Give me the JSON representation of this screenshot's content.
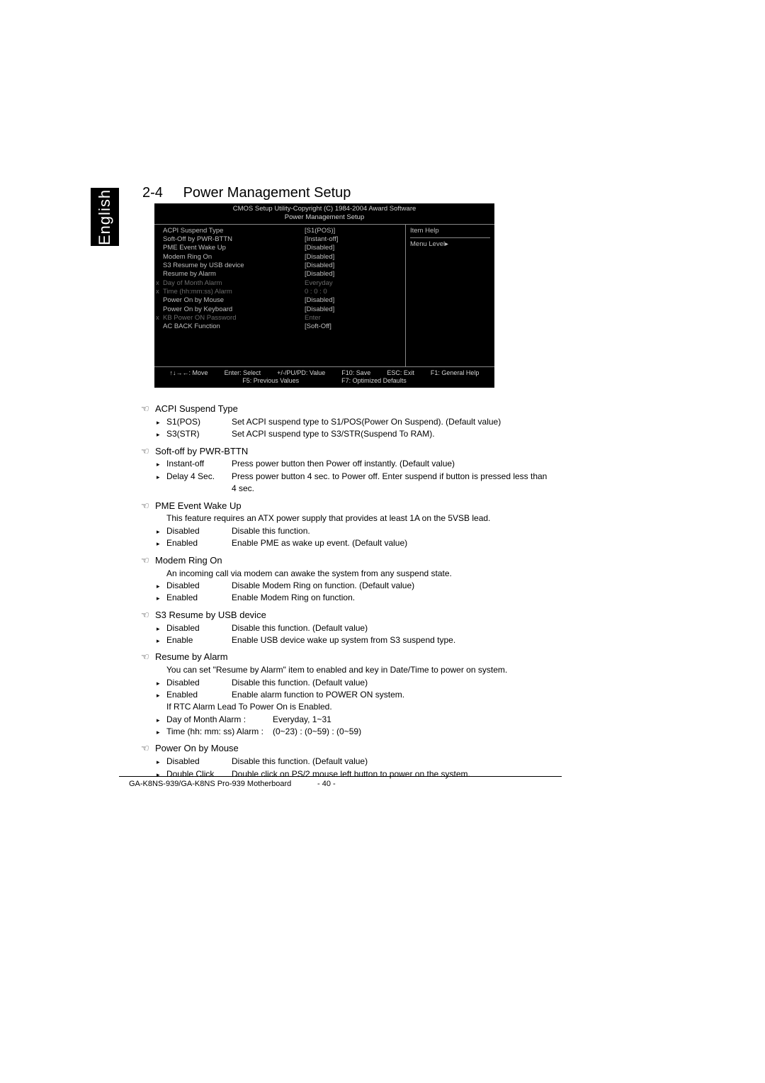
{
  "tab": {
    "label": "English"
  },
  "section": {
    "number": "2-4",
    "title": "Power Management Setup"
  },
  "bios": {
    "header1": "CMOS Setup Utility-Copyright (C) 1984-2004 Award Software",
    "header2": "Power Management Setup",
    "rows": [
      {
        "label": "ACPI Suspend Type",
        "value": "[S1(POS)]",
        "dim": false,
        "x": false
      },
      {
        "label": "Soft-Off by PWR-BTTN",
        "value": "[Instant-off]",
        "dim": false,
        "x": false
      },
      {
        "label": "PME Event Wake Up",
        "value": "[Disabled]",
        "dim": false,
        "x": false
      },
      {
        "label": "Modem Ring On",
        "value": "[Disabled]",
        "dim": false,
        "x": false
      },
      {
        "label": "S3 Resume by USB device",
        "value": "[Disabled]",
        "dim": false,
        "x": false
      },
      {
        "label": "Resume by Alarm",
        "value": "[Disabled]",
        "dim": false,
        "x": false
      },
      {
        "label": "Day of Month Alarm",
        "value": "Everyday",
        "dim": true,
        "x": true
      },
      {
        "label": "Time (hh:mm:ss) Alarm",
        "value": "0 : 0 : 0",
        "dim": true,
        "x": true
      },
      {
        "label": "Power On by Mouse",
        "value": "[Disabled]",
        "dim": false,
        "x": false
      },
      {
        "label": "Power On by Keyboard",
        "value": "[Disabled]",
        "dim": false,
        "x": false
      },
      {
        "label": "KB Power ON Password",
        "value": "Enter",
        "dim": true,
        "x": true
      },
      {
        "label": "AC BACK Function",
        "value": "[Soft-Off]",
        "dim": false,
        "x": false
      }
    ],
    "right": {
      "item_help": "Item Help",
      "menu_level": "Menu Level▸"
    },
    "footer": {
      "row1": [
        "↑↓→←: Move",
        "Enter: Select",
        "+/-/PU/PD: Value",
        "F10: Save",
        "ESC: Exit",
        "F1: General Help"
      ],
      "row2": [
        "F5: Previous Values",
        "F7: Optimized Defaults"
      ]
    }
  },
  "options": [
    {
      "title": "ACPI Suspend Type",
      "items": [
        {
          "key": "S1(POS)",
          "desc": "Set ACPI suspend type to S1/POS(Power On Suspend). (Default value)"
        },
        {
          "key": "S3(STR)",
          "desc": "Set ACPI suspend type to S3/STR(Suspend To RAM)."
        }
      ]
    },
    {
      "title": "Soft-off by PWR-BTTN",
      "items": [
        {
          "key": "Instant-off",
          "desc": "Press power button then Power off instantly. (Default value)"
        },
        {
          "key": "Delay 4 Sec.",
          "desc": "Press power button 4 sec. to Power off. Enter suspend if button is pressed less than 4 sec."
        }
      ]
    },
    {
      "title": "PME Event Wake Up",
      "intro": "This feature requires an ATX power supply that provides at least 1A on the 5VSB lead.",
      "items": [
        {
          "key": "Disabled",
          "desc": "Disable this function."
        },
        {
          "key": "Enabled",
          "desc": "Enable PME as wake up event. (Default value)"
        }
      ]
    },
    {
      "title": "Modem Ring On",
      "intro": "An incoming call via modem can awake the system from any suspend state.",
      "items": [
        {
          "key": "Disabled",
          "desc": "Disable Modem Ring on function. (Default value)"
        },
        {
          "key": "Enabled",
          "desc": "Enable Modem Ring on function."
        }
      ]
    },
    {
      "title": "S3 Resume by USB device",
      "items": [
        {
          "key": "Disabled",
          "desc": "Disable this function. (Default value)"
        },
        {
          "key": "Enable",
          "desc": "Enable USB device wake up system from S3 suspend type."
        }
      ]
    },
    {
      "title": "Resume by Alarm",
      "intro": "You can set \"Resume by Alarm\" item to enabled and key in Date/Time to power on system.",
      "items": [
        {
          "key": "Disabled",
          "desc": "Disable this function. (Default value)"
        },
        {
          "key": "Enabled",
          "desc": "Enable alarm function to POWER ON system."
        }
      ],
      "post": "If RTC Alarm Lead To Power On is Enabled.",
      "sub": [
        {
          "key": "Day of Month Alarm :",
          "desc": "Everyday, 1~31"
        },
        {
          "key": "Time (hh: mm: ss) Alarm :",
          "desc": "(0~23) : (0~59) : (0~59)"
        }
      ]
    },
    {
      "title": "Power On by Mouse",
      "items": [
        {
          "key": "Disabled",
          "desc": "Disable this function. (Default value)"
        },
        {
          "key": "Double Click",
          "desc": "Double click on PS/2 mouse left button to power on the system."
        }
      ]
    }
  ],
  "footer": {
    "model": "GA-K8NS-939/GA-K8NS Pro-939 Motherboard",
    "page": "- 40 -"
  }
}
